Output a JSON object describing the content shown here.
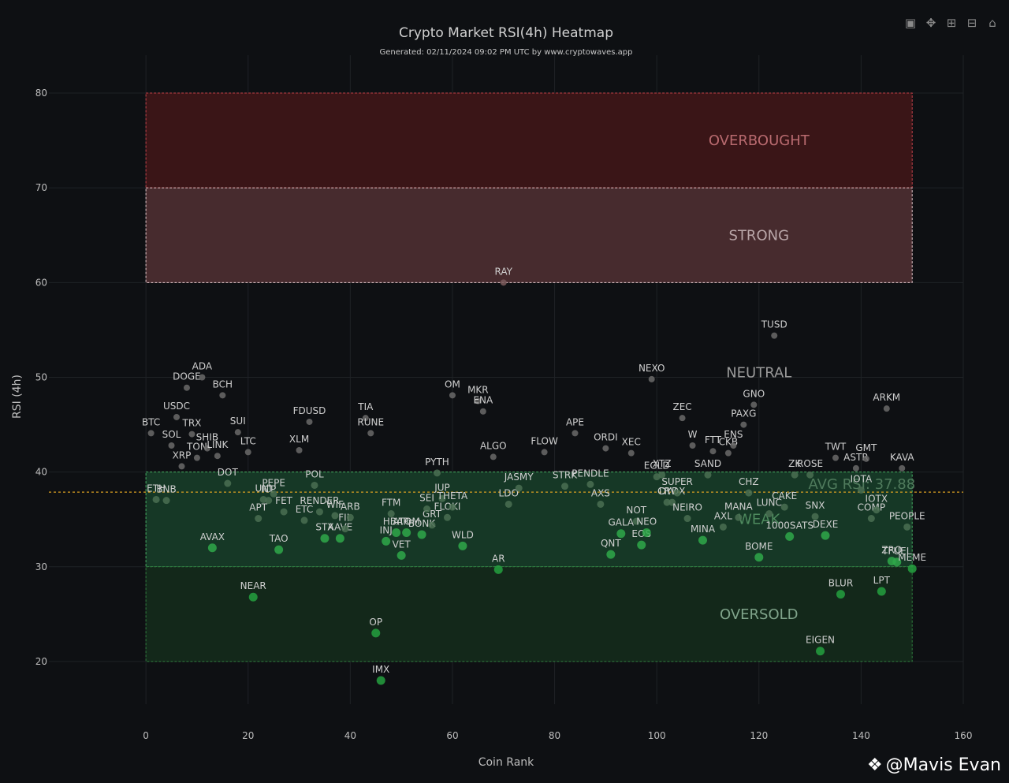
{
  "toolbar": {
    "camera_icon": "camera-icon",
    "pan_icon": "pan-icon",
    "zoom_in_icon": "zoom-in-icon",
    "zoom_out_icon": "zoom-out-icon",
    "home_icon": "home-icon"
  },
  "watermark": "@Mavis Evan",
  "chart_data": {
    "type": "scatter",
    "title": "Crypto Market RSI(4h) Heatmap",
    "subtitle": "Generated: 02/11/2024 09:02 PM UTC by www.cryptowaves.app",
    "xlabel": "Coin Rank",
    "ylabel": "RSI (4h)",
    "xlim": [
      -19,
      160
    ],
    "ylim": [
      15.5,
      84
    ],
    "xticks": [
      0,
      20,
      40,
      60,
      80,
      100,
      120,
      140,
      160
    ],
    "yticks": [
      20,
      30,
      40,
      50,
      60,
      70,
      80
    ],
    "grid": true,
    "avg_rsi": 37.88,
    "avg_label": "AVG RSI: 37.88",
    "zones": [
      {
        "name": "OVERBOUGHT",
        "from": 70,
        "to": 80,
        "fill": "#3a1517",
        "stroke": "#c2424a"
      },
      {
        "name": "STRONG",
        "from": 60,
        "to": 70,
        "fill": "#472b2e",
        "stroke": "#e6c8cc"
      },
      {
        "name": "NEUTRAL",
        "from": 40,
        "to": 60,
        "fill": "none",
        "stroke": "none"
      },
      {
        "name": "WEAK",
        "from": 30,
        "to": 40,
        "fill": "#163826",
        "stroke": "#46b063"
      },
      {
        "name": "OVERSOLD",
        "from": 20,
        "to": 30,
        "fill": "#13281a",
        "stroke": "#2f7d3e"
      }
    ],
    "points": [
      {
        "label": "BTC",
        "x": 1,
        "y": 44.1
      },
      {
        "label": "ETH",
        "x": 2,
        "y": 37.1
      },
      {
        "label": "USDC",
        "x": 6,
        "y": 45.8
      },
      {
        "label": "BNB",
        "x": 4,
        "y": 37.0
      },
      {
        "label": "SOL",
        "x": 5,
        "y": 42.8
      },
      {
        "label": "XRP",
        "x": 7,
        "y": 40.6
      },
      {
        "label": "DOGE",
        "x": 8,
        "y": 48.9
      },
      {
        "label": "TRX",
        "x": 9,
        "y": 44.0
      },
      {
        "label": "TON",
        "x": 10,
        "y": 41.5
      },
      {
        "label": "ADA",
        "x": 11,
        "y": 50.0
      },
      {
        "label": "AVAX",
        "x": 13,
        "y": 32.0
      },
      {
        "label": "SHIB",
        "x": 12,
        "y": 42.5
      },
      {
        "label": "LINK",
        "x": 14,
        "y": 41.7
      },
      {
        "label": "BCH",
        "x": 15,
        "y": 48.1
      },
      {
        "label": "DOT",
        "x": 16,
        "y": 38.8
      },
      {
        "label": "SUI",
        "x": 18,
        "y": 44.2
      },
      {
        "label": "LTC",
        "x": 20,
        "y": 42.1
      },
      {
        "label": "NEAR",
        "x": 21,
        "y": 26.8
      },
      {
        "label": "APT",
        "x": 22,
        "y": 35.1
      },
      {
        "label": "UNI",
        "x": 23,
        "y": 37.1
      },
      {
        "label": "ICP",
        "x": 24,
        "y": 37.0
      },
      {
        "label": "PEPE",
        "x": 25,
        "y": 37.7
      },
      {
        "label": "TAO",
        "x": 26,
        "y": 31.8
      },
      {
        "label": "FET",
        "x": 27,
        "y": 35.8
      },
      {
        "label": "XLM",
        "x": 30,
        "y": 42.3
      },
      {
        "label": "ETC",
        "x": 31,
        "y": 34.9
      },
      {
        "label": "FDUSD",
        "x": 32,
        "y": 45.3
      },
      {
        "label": "POL",
        "x": 33,
        "y": 38.6
      },
      {
        "label": "RENDER",
        "x": 34,
        "y": 35.8
      },
      {
        "label": "STX",
        "x": 35,
        "y": 33.0
      },
      {
        "label": "WIF",
        "x": 37,
        "y": 35.4
      },
      {
        "label": "AAVE",
        "x": 38,
        "y": 33.0
      },
      {
        "label": "FIL",
        "x": 39,
        "y": 34.0
      },
      {
        "label": "ARB",
        "x": 40,
        "y": 35.2
      },
      {
        "label": "TIA",
        "x": 43,
        "y": 45.7
      },
      {
        "label": "RUNE",
        "x": 44,
        "y": 44.1
      },
      {
        "label": "OP",
        "x": 45,
        "y": 23.0
      },
      {
        "label": "IMX",
        "x": 46,
        "y": 18.0
      },
      {
        "label": "INJ",
        "x": 47,
        "y": 32.7
      },
      {
        "label": "FTM",
        "x": 48,
        "y": 35.6
      },
      {
        "label": "HBAR",
        "x": 49,
        "y": 33.6
      },
      {
        "label": "VET",
        "x": 50,
        "y": 31.2
      },
      {
        "label": "ATOM",
        "x": 51,
        "y": 33.6
      },
      {
        "label": "BONK",
        "x": 54,
        "y": 33.4
      },
      {
        "label": "GRT",
        "x": 56,
        "y": 34.4
      },
      {
        "label": "SEI",
        "x": 55,
        "y": 36.1
      },
      {
        "label": "PYTH",
        "x": 57,
        "y": 39.9
      },
      {
        "label": "JUP",
        "x": 58,
        "y": 37.2
      },
      {
        "label": "FLOKI",
        "x": 59,
        "y": 35.2
      },
      {
        "label": "THETA",
        "x": 60,
        "y": 36.3
      },
      {
        "label": "OM",
        "x": 60,
        "y": 48.1
      },
      {
        "label": "WLD",
        "x": 62,
        "y": 32.2
      },
      {
        "label": "MKR",
        "x": 65,
        "y": 47.5
      },
      {
        "label": "ENA",
        "x": 66,
        "y": 46.4
      },
      {
        "label": "ALGO",
        "x": 68,
        "y": 41.6
      },
      {
        "label": "AR",
        "x": 69,
        "y": 29.7
      },
      {
        "label": "RAY",
        "x": 70,
        "y": 60.0
      },
      {
        "label": "LDO",
        "x": 71,
        "y": 36.6
      },
      {
        "label": "JASMY",
        "x": 73,
        "y": 38.3
      },
      {
        "label": "FLOW",
        "x": 78,
        "y": 42.1
      },
      {
        "label": "STRK",
        "x": 82,
        "y": 38.5
      },
      {
        "label": "APE",
        "x": 84,
        "y": 44.1
      },
      {
        "label": "PENDLE",
        "x": 87,
        "y": 38.7
      },
      {
        "label": "AXS",
        "x": 89,
        "y": 36.6
      },
      {
        "label": "ORDI",
        "x": 90,
        "y": 42.5
      },
      {
        "label": "QNT",
        "x": 91,
        "y": 31.3
      },
      {
        "label": "GALA",
        "x": 93,
        "y": 33.5
      },
      {
        "label": "XEC",
        "x": 95,
        "y": 42.0
      },
      {
        "label": "NOT",
        "x": 96,
        "y": 34.8
      },
      {
        "label": "EOS",
        "x": 97,
        "y": 32.3
      },
      {
        "label": "NEO",
        "x": 98,
        "y": 33.6
      },
      {
        "label": "NEXO",
        "x": 99,
        "y": 49.8
      },
      {
        "label": "EGLD",
        "x": 100,
        "y": 39.5
      },
      {
        "label": "XTZ",
        "x": 101,
        "y": 39.7
      },
      {
        "label": "CRV",
        "x": 102,
        "y": 36.8
      },
      {
        "label": "DYDX",
        "x": 103,
        "y": 36.8
      },
      {
        "label": "SUPER",
        "x": 104,
        "y": 37.8
      },
      {
        "label": "ZEC",
        "x": 105,
        "y": 45.7
      },
      {
        "label": "NEIRO",
        "x": 106,
        "y": 35.1
      },
      {
        "label": "W",
        "x": 107,
        "y": 42.8
      },
      {
        "label": "MINA",
        "x": 109,
        "y": 32.8
      },
      {
        "label": "SAND",
        "x": 110,
        "y": 39.7
      },
      {
        "label": "FTT",
        "x": 111,
        "y": 42.2
      },
      {
        "label": "AXL",
        "x": 113,
        "y": 34.2
      },
      {
        "label": "CKB",
        "x": 114,
        "y": 42.0
      },
      {
        "label": "ENS",
        "x": 115,
        "y": 42.8
      },
      {
        "label": "MANA",
        "x": 116,
        "y": 35.2
      },
      {
        "label": "PAXG",
        "x": 117,
        "y": 45.0
      },
      {
        "label": "CHZ",
        "x": 118,
        "y": 37.8
      },
      {
        "label": "GNO",
        "x": 119,
        "y": 47.1
      },
      {
        "label": "BOME",
        "x": 120,
        "y": 31.0
      },
      {
        "label": "LUNC",
        "x": 122,
        "y": 35.6
      },
      {
        "label": "TUSD",
        "x": 123,
        "y": 54.4
      },
      {
        "label": "CAKE",
        "x": 125,
        "y": 36.3
      },
      {
        "label": "1000SATS",
        "x": 126,
        "y": 33.2
      },
      {
        "label": "ZK",
        "x": 127,
        "y": 39.7
      },
      {
        "label": "ROSE",
        "x": 130,
        "y": 39.7
      },
      {
        "label": "SNX",
        "x": 131,
        "y": 35.3
      },
      {
        "label": "EIGEN",
        "x": 132,
        "y": 21.1
      },
      {
        "label": "DEXE",
        "x": 133,
        "y": 33.3
      },
      {
        "label": "TWT",
        "x": 135,
        "y": 41.5
      },
      {
        "label": "BLUR",
        "x": 136,
        "y": 27.1
      },
      {
        "label": "ASTR",
        "x": 139,
        "y": 40.4
      },
      {
        "label": "IOTA",
        "x": 140,
        "y": 38.1
      },
      {
        "label": "GMT",
        "x": 141,
        "y": 41.4
      },
      {
        "label": "COMP",
        "x": 142,
        "y": 35.1
      },
      {
        "label": "IOTX",
        "x": 143,
        "y": 36.0
      },
      {
        "label": "LPT",
        "x": 144,
        "y": 27.4
      },
      {
        "label": "ARKM",
        "x": 145,
        "y": 46.7
      },
      {
        "label": "ZRO",
        "x": 146,
        "y": 30.6
      },
      {
        "label": "TFUEL",
        "x": 147,
        "y": 30.5
      },
      {
        "label": "KAVA",
        "x": 148,
        "y": 40.4
      },
      {
        "label": "PEOPLE",
        "x": 149,
        "y": 34.2
      },
      {
        "label": "MEME",
        "x": 150,
        "y": 29.8
      }
    ]
  }
}
